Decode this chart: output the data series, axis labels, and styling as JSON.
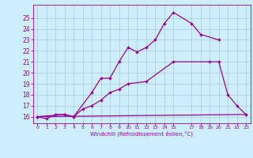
{
  "xlabel": "Windchill (Refroidissement éolien,°C)",
  "bg_color": "#cceeff",
  "grid_color": "#aacccc",
  "line_color": "#990099",
  "xlim": [
    -0.5,
    23.5
  ],
  "ylim": [
    15.4,
    26.2
  ],
  "xticks": [
    0,
    1,
    2,
    3,
    4,
    5,
    6,
    7,
    8,
    9,
    10,
    11,
    12,
    13,
    14,
    15,
    17,
    18,
    19,
    20,
    21,
    22,
    23
  ],
  "yticks": [
    16,
    17,
    18,
    19,
    20,
    21,
    22,
    23,
    24,
    25
  ],
  "line1_x": [
    0,
    1,
    2,
    3,
    4,
    6,
    7,
    8,
    9,
    10,
    11,
    12,
    13,
    14,
    15,
    17,
    18,
    20
  ],
  "line1_y": [
    16.0,
    15.8,
    16.2,
    16.2,
    16.0,
    18.2,
    19.5,
    19.5,
    21.0,
    22.3,
    21.9,
    22.3,
    23.0,
    24.5,
    25.5,
    24.5,
    23.5,
    23.0
  ],
  "line2_x": [
    0,
    3,
    4,
    5,
    6,
    7,
    8,
    9,
    10,
    12,
    15,
    19,
    20,
    21,
    22,
    23
  ],
  "line2_y": [
    16.0,
    16.2,
    16.0,
    16.7,
    17.0,
    17.5,
    18.2,
    18.5,
    19.0,
    19.2,
    21.0,
    21.0,
    21.0,
    18.0,
    17.0,
    16.2
  ],
  "line3_x": [
    0,
    23
  ],
  "line3_y": [
    16.0,
    16.2
  ],
  "figsize": [
    3.2,
    2.0
  ],
  "dpi": 100
}
